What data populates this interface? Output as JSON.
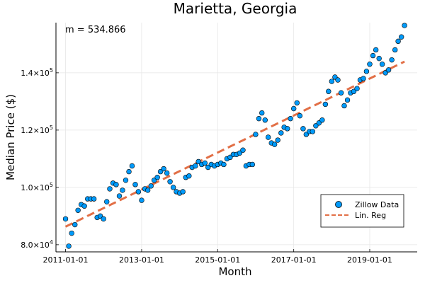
{
  "chart_data": {
    "type": "scatter",
    "title": "Marietta, Georgia",
    "xlabel": "Month",
    "ylabel": "Median Price ($)",
    "annotation": "m = 534.866",
    "x_ticks": [
      "2011-01-01",
      "2013-01-01",
      "2015-01-01",
      "2017-01-01",
      "2019-01-01"
    ],
    "y_ticks": [
      {
        "value": 80000,
        "mantissa": "8.0×10",
        "exp": "4"
      },
      {
        "value": 100000,
        "mantissa": "1.0×10",
        "exp": "5"
      },
      {
        "value": 120000,
        "mantissa": "1.2×10",
        "exp": "5"
      },
      {
        "value": 140000,
        "mantissa": "1.4×10",
        "exp": "5"
      }
    ],
    "xlim": [
      "2010-10-01",
      "2020-04-01"
    ],
    "ylim": [
      77500,
      157500
    ],
    "grid": true,
    "legend_position": "bottom-right",
    "series": [
      {
        "name": "Zillow Data",
        "kind": "scatter",
        "color": "#009AFA",
        "x_start": "2011-01-01",
        "interval": "monthly",
        "values": [
          89000,
          79500,
          84000,
          87000,
          92000,
          94000,
          93500,
          96000,
          96000,
          96000,
          89500,
          90000,
          89000,
          95000,
          99500,
          101500,
          101000,
          97000,
          99000,
          102500,
          105500,
          107500,
          101000,
          98500,
          95500,
          99500,
          99000,
          100500,
          102500,
          103500,
          105500,
          106500,
          105000,
          102000,
          100000,
          98500,
          98000,
          98500,
          103500,
          104000,
          107000,
          107500,
          109000,
          108000,
          108500,
          107000,
          108000,
          107500,
          108000,
          108500,
          108000,
          110000,
          110500,
          111500,
          111500,
          112000,
          113000,
          107500,
          108000,
          108000,
          118500,
          124000,
          126000,
          123500,
          117500,
          115500,
          115000,
          116500,
          119000,
          121000,
          120500,
          124000,
          127500,
          129500,
          125000,
          120500,
          118500,
          119500,
          119500,
          121500,
          122500,
          123500,
          129000,
          133500,
          137000,
          138500,
          137500,
          133000,
          128500,
          130500,
          133000,
          133500,
          134500,
          137500,
          138000,
          140500,
          143000,
          146000,
          148000,
          145000,
          143000,
          140000,
          141000,
          144500,
          148000,
          151000,
          152500,
          156500
        ]
      },
      {
        "name": "Lin. Reg",
        "kind": "line",
        "color": "#E26F46",
        "dash": true,
        "x": [
          "2011-01-01",
          "2019-12-01"
        ],
        "values": [
          86300,
          143900
        ]
      }
    ]
  }
}
